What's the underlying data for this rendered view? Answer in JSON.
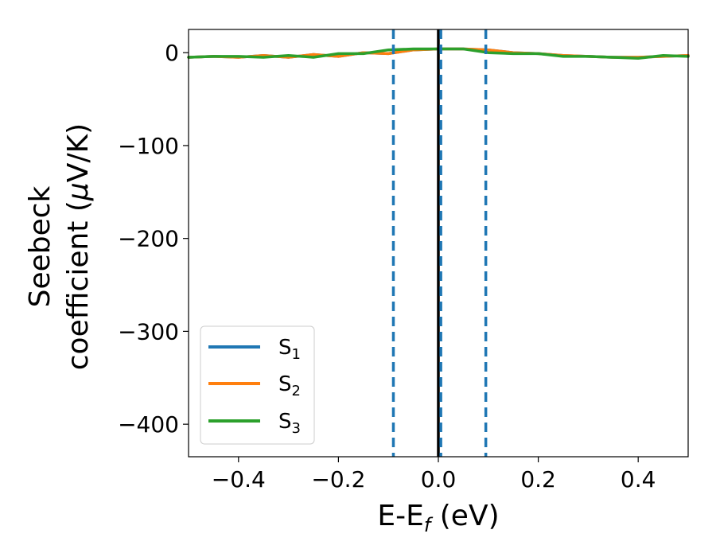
{
  "chart_data": {
    "type": "line",
    "xlabel": {
      "main": "E-E",
      "sub": "f",
      "unit": " (eV)"
    },
    "ylabel": {
      "line1": "Seebeck",
      "line2": "coefficient  (",
      "mu": "μ",
      "unit": "V/K)"
    },
    "xlim": [
      -0.5,
      0.5
    ],
    "ylim": [
      -435,
      25
    ],
    "xticks": [
      {
        "value": -0.4,
        "label": "−0.4"
      },
      {
        "value": -0.2,
        "label": "−0.2"
      },
      {
        "value": 0.0,
        "label": "0.0"
      },
      {
        "value": 0.2,
        "label": "0.2"
      },
      {
        "value": 0.4,
        "label": "0.4"
      }
    ],
    "yticks": [
      {
        "value": 0,
        "label": "0"
      },
      {
        "value": -100,
        "label": "−100"
      },
      {
        "value": -200,
        "label": "−200"
      },
      {
        "value": -300,
        "label": "−300"
      },
      {
        "value": -400,
        "label": "−400"
      }
    ],
    "x": [
      -0.5,
      -0.45,
      -0.4,
      -0.35,
      -0.3,
      -0.25,
      -0.2,
      -0.15,
      -0.1,
      -0.05,
      0.0,
      0.05,
      0.1,
      0.15,
      0.2,
      0.25,
      0.3,
      0.35,
      0.4,
      0.45,
      0.5
    ],
    "series": [
      {
        "name": "S",
        "sub": "1",
        "color": "#1f77b4",
        "values": [
          -5,
          -4,
          -5,
          -3,
          -5,
          -2,
          -4,
          0,
          -1,
          3,
          4,
          4,
          3,
          0,
          -1,
          -3,
          -4,
          -5,
          -5,
          -4,
          -3
        ]
      },
      {
        "name": "S",
        "sub": "2",
        "color": "#ff7f0e",
        "values": [
          -5,
          -4,
          -5,
          -3,
          -5,
          -2,
          -4,
          0,
          -1,
          3,
          4,
          4,
          3,
          0,
          -1,
          -3,
          -4,
          -5,
          -5,
          -4,
          -3
        ]
      },
      {
        "name": "S",
        "sub": "3",
        "color": "#2ca02c",
        "values": [
          -5,
          -4,
          -4,
          -5,
          -3,
          -5,
          -1,
          -1,
          3,
          4,
          4,
          4,
          0,
          -1,
          -1,
          -4,
          -4,
          -5,
          -6,
          -3,
          -4
        ]
      }
    ],
    "vlines": [
      {
        "x": -0.09,
        "style": "dashed",
        "color": "#1f77b4"
      },
      {
        "x": 0.0,
        "style": "solid",
        "color": "#000000"
      },
      {
        "x": 0.005,
        "style": "dashed",
        "color": "#1f77b4"
      },
      {
        "x": 0.095,
        "style": "dashed",
        "color": "#1f77b4"
      }
    ],
    "legend_position": "lower-left",
    "grid": false
  }
}
